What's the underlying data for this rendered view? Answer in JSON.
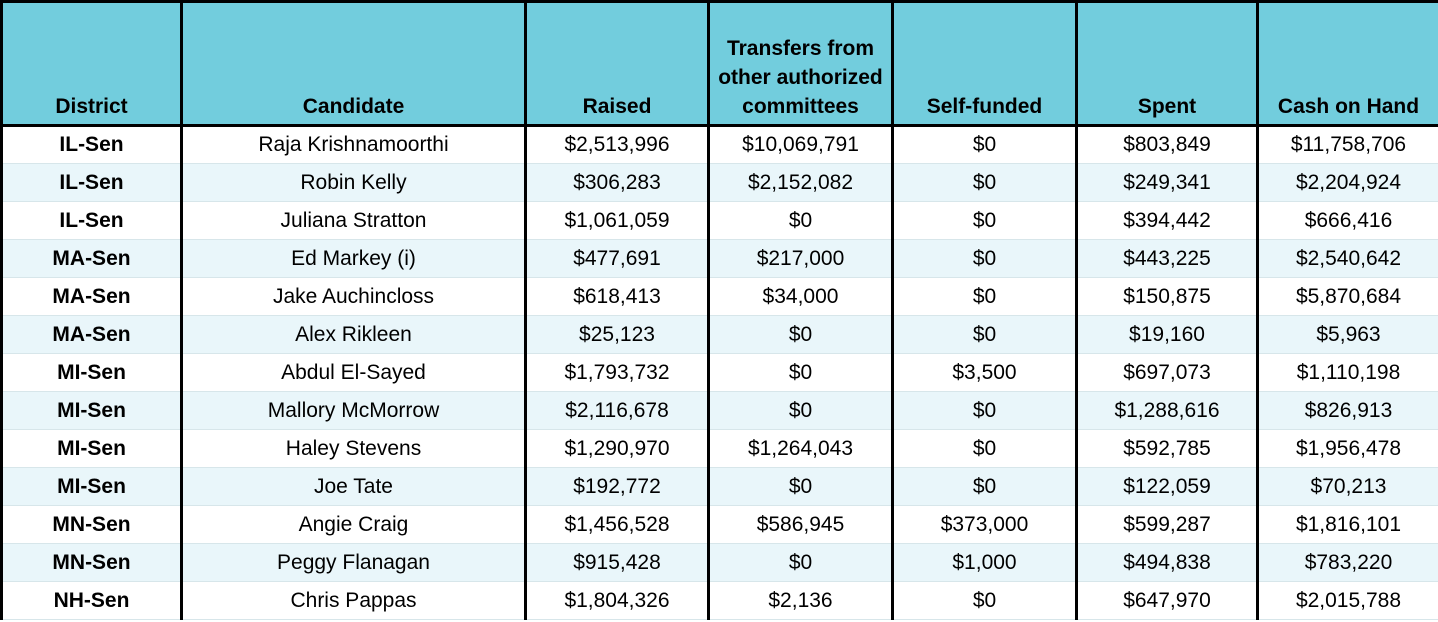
{
  "columns": [
    "District",
    "Candidate",
    "Raised",
    "Transfers from other authorized committees",
    "Self-funded",
    "Spent",
    "Cash on Hand"
  ],
  "rows": [
    [
      "IL-Sen",
      "Raja Krishnamoorthi",
      "$2,513,996",
      "$10,069,791",
      "$0",
      "$803,849",
      "$11,758,706"
    ],
    [
      "IL-Sen",
      "Robin Kelly",
      "$306,283",
      "$2,152,082",
      "$0",
      "$249,341",
      "$2,204,924"
    ],
    [
      "IL-Sen",
      "Juliana Stratton",
      "$1,061,059",
      "$0",
      "$0",
      "$394,442",
      "$666,416"
    ],
    [
      "MA-Sen",
      "Ed Markey (i)",
      "$477,691",
      "$217,000",
      "$0",
      "$443,225",
      "$2,540,642"
    ],
    [
      "MA-Sen",
      "Jake Auchincloss",
      "$618,413",
      "$34,000",
      "$0",
      "$150,875",
      "$5,870,684"
    ],
    [
      "MA-Sen",
      "Alex Rikleen",
      "$25,123",
      "$0",
      "$0",
      "$19,160",
      "$5,963"
    ],
    [
      "MI-Sen",
      "Abdul El-Sayed",
      "$1,793,732",
      "$0",
      "$3,500",
      "$697,073",
      "$1,110,198"
    ],
    [
      "MI-Sen",
      "Mallory McMorrow",
      "$2,116,678",
      "$0",
      "$0",
      "$1,288,616",
      "$826,913"
    ],
    [
      "MI-Sen",
      "Haley Stevens",
      "$1,290,970",
      "$1,264,043",
      "$0",
      "$592,785",
      "$1,956,478"
    ],
    [
      "MI-Sen",
      "Joe Tate",
      "$192,772",
      "$0",
      "$0",
      "$122,059",
      "$70,213"
    ],
    [
      "MN-Sen",
      "Angie Craig",
      "$1,456,528",
      "$586,945",
      "$373,000",
      "$599,287",
      "$1,816,101"
    ],
    [
      "MN-Sen",
      "Peggy Flanagan",
      "$915,428",
      "$0",
      "$1,000",
      "$494,838",
      "$783,220"
    ],
    [
      "NH-Sen",
      "Chris Pappas",
      "$1,804,326",
      "$2,136",
      "$0",
      "$647,970",
      "$2,015,788"
    ]
  ]
}
